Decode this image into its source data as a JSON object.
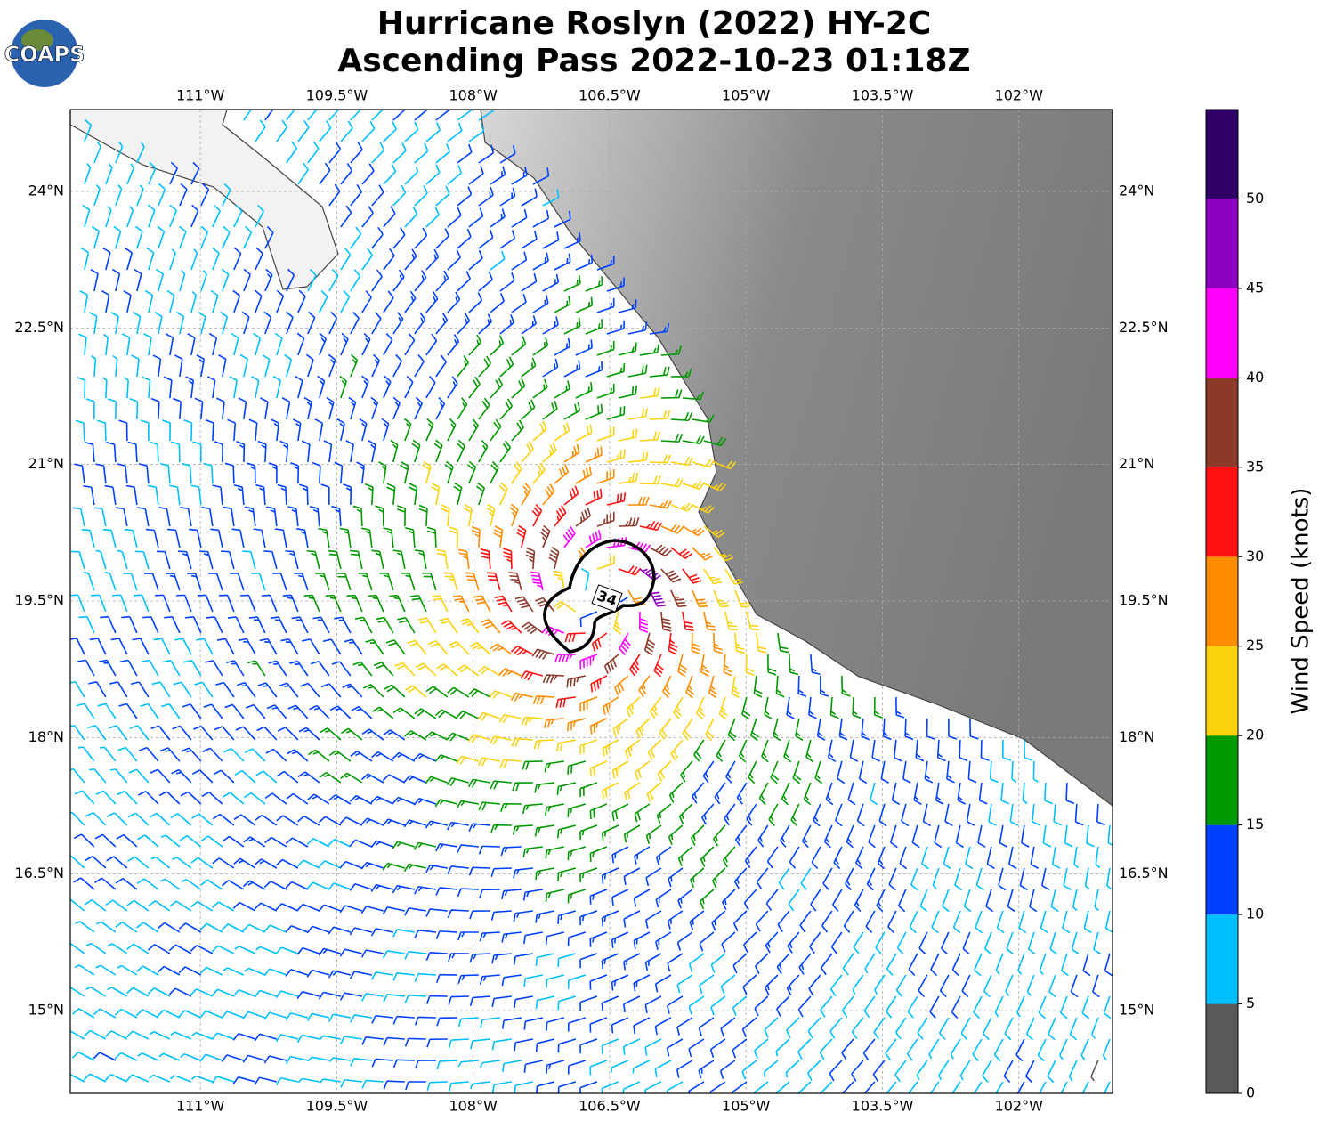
{
  "chart_data": {
    "type": "map",
    "title": "Hurricane Roslyn (2022) HY-2C",
    "subtitle": "Ascending Pass 2022-10-23 01:18Z",
    "logo": "COAPS",
    "contour_label": "34",
    "xlim": [
      -112.43,
      -100.97
    ],
    "ylim": [
      14.09,
      24.9
    ],
    "xticks": [
      {
        "value": -111,
        "label": "111°W"
      },
      {
        "value": -109.5,
        "label": "109.5°W"
      },
      {
        "value": -108,
        "label": "108°W"
      },
      {
        "value": -106.5,
        "label": "106.5°W"
      },
      {
        "value": -105,
        "label": "105°W"
      },
      {
        "value": -103.5,
        "label": "103.5°W"
      },
      {
        "value": -102,
        "label": "102°W"
      }
    ],
    "yticks": [
      {
        "value": 15,
        "label": "15°N"
      },
      {
        "value": 16.5,
        "label": "16.5°N"
      },
      {
        "value": 18,
        "label": "18°N"
      },
      {
        "value": 19.5,
        "label": "19.5°N"
      },
      {
        "value": 21,
        "label": "21°N"
      },
      {
        "value": 22.5,
        "label": "22.5°N"
      },
      {
        "value": 24,
        "label": "24°N"
      }
    ],
    "grid": true,
    "colorbar": {
      "label": "Wind Speed (knots)",
      "lim": [
        0,
        55
      ],
      "ticks": [
        0,
        5,
        10,
        15,
        20,
        25,
        30,
        35,
        40,
        45,
        50
      ],
      "colors": [
        "#595959",
        "#00bfff",
        "#0040ff",
        "#009900",
        "#fcd20f",
        "#ff8c00",
        "#ff1010",
        "#8b3a2a",
        "#ff00ff",
        "#8c00c0",
        "#2e0066"
      ]
    }
  }
}
